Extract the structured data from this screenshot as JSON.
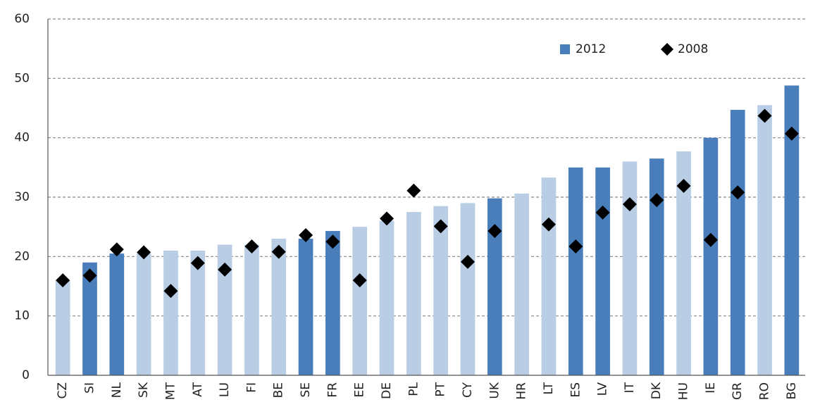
{
  "chart_data": {
    "type": "bar",
    "categories": [
      "CZ",
      "SI",
      "NL",
      "SK",
      "MT",
      "AT",
      "LU",
      "FI",
      "BE",
      "SE",
      "FR",
      "EE",
      "DE",
      "PL",
      "PT",
      "CY",
      "UK",
      "HR",
      "LT",
      "ES",
      "LV",
      "IT",
      "DK",
      "HU",
      "IE",
      "GR",
      "RO",
      "BG"
    ],
    "series": [
      {
        "name": "2012",
        "type": "bar",
        "color": "#4a7ebb",
        "colors": [
          "#b9cde5",
          "#4a7ebb",
          "#4a7ebb",
          "#b9cde5",
          "#b9cde5",
          "#b9cde5",
          "#b9cde5",
          "#b9cde5",
          "#b9cde5",
          "#4a7ebb",
          "#4a7ebb",
          "#b9cde5",
          "#b9cde5",
          "#b9cde5",
          "#b9cde5",
          "#b9cde5",
          "#4a7ebb",
          "#b9cde5",
          "#b9cde5",
          "#4a7ebb",
          "#4a7ebb",
          "#b9cde5",
          "#4a7ebb",
          "#b9cde5",
          "#4a7ebb",
          "#4a7ebb",
          "#b9cde5",
          "#4a7ebb"
        ],
        "values": [
          16,
          19,
          20.5,
          20.5,
          21,
          21,
          22,
          22,
          23,
          23,
          24.3,
          25,
          26,
          27.5,
          28.5,
          29,
          29.8,
          30.6,
          33.3,
          35,
          35,
          36,
          36.5,
          37.7,
          40,
          44.7,
          45.5,
          48.8
        ]
      },
      {
        "name": "2008",
        "type": "scatter",
        "color": "#000000",
        "values": [
          16,
          16.8,
          21.2,
          20.7,
          14.2,
          18.9,
          17.8,
          21.7,
          20.8,
          23.6,
          22.5,
          16,
          26.4,
          31.1,
          25.1,
          19.1,
          24.3,
          null,
          25.4,
          21.7,
          27.4,
          28.8,
          29.5,
          31.9,
          22.8,
          30.8,
          43.7,
          40.7
        ]
      }
    ],
    "ylim": [
      0,
      60
    ],
    "yticks": [
      0,
      10,
      20,
      30,
      40,
      50,
      60
    ],
    "grid": true,
    "legend": "top-right"
  }
}
